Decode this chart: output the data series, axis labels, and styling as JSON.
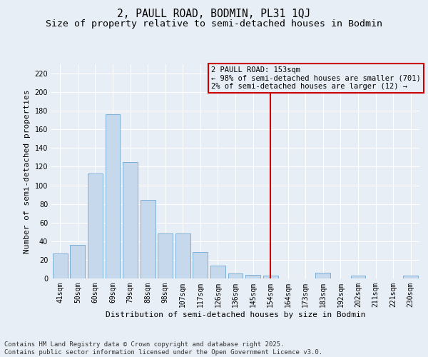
{
  "title": "2, PAULL ROAD, BODMIN, PL31 1QJ",
  "subtitle": "Size of property relative to semi-detached houses in Bodmin",
  "xlabel": "Distribution of semi-detached houses by size in Bodmin",
  "ylabel": "Number of semi-detached properties",
  "categories": [
    "41sqm",
    "50sqm",
    "60sqm",
    "69sqm",
    "79sqm",
    "88sqm",
    "98sqm",
    "107sqm",
    "117sqm",
    "126sqm",
    "136sqm",
    "145sqm",
    "154sqm",
    "164sqm",
    "173sqm",
    "183sqm",
    "192sqm",
    "202sqm",
    "211sqm",
    "221sqm",
    "230sqm"
  ],
  "values": [
    27,
    36,
    113,
    176,
    125,
    84,
    48,
    48,
    28,
    14,
    5,
    4,
    3,
    0,
    0,
    6,
    0,
    3,
    0,
    0,
    3
  ],
  "bar_color": "#c6d9ec",
  "bar_edge_color": "#7bafd4",
  "background_color": "#e8eef5",
  "grid_color": "#ffffff",
  "vline_x_index": 12,
  "vline_color": "#cc0000",
  "legend_title": "2 PAULL ROAD: 153sqm",
  "legend_line1": "← 98% of semi-detached houses are smaller (701)",
  "legend_line2": "2% of semi-detached houses are larger (12) →",
  "legend_box_color": "#cc0000",
  "ylim": [
    0,
    230
  ],
  "yticks": [
    0,
    20,
    40,
    60,
    80,
    100,
    120,
    140,
    160,
    180,
    200,
    220
  ],
  "footer_line1": "Contains HM Land Registry data © Crown copyright and database right 2025.",
  "footer_line2": "Contains public sector information licensed under the Open Government Licence v3.0.",
  "title_fontsize": 10.5,
  "subtitle_fontsize": 9.5,
  "axis_label_fontsize": 8,
  "tick_fontsize": 7,
  "legend_fontsize": 7.5,
  "footer_fontsize": 6.5
}
